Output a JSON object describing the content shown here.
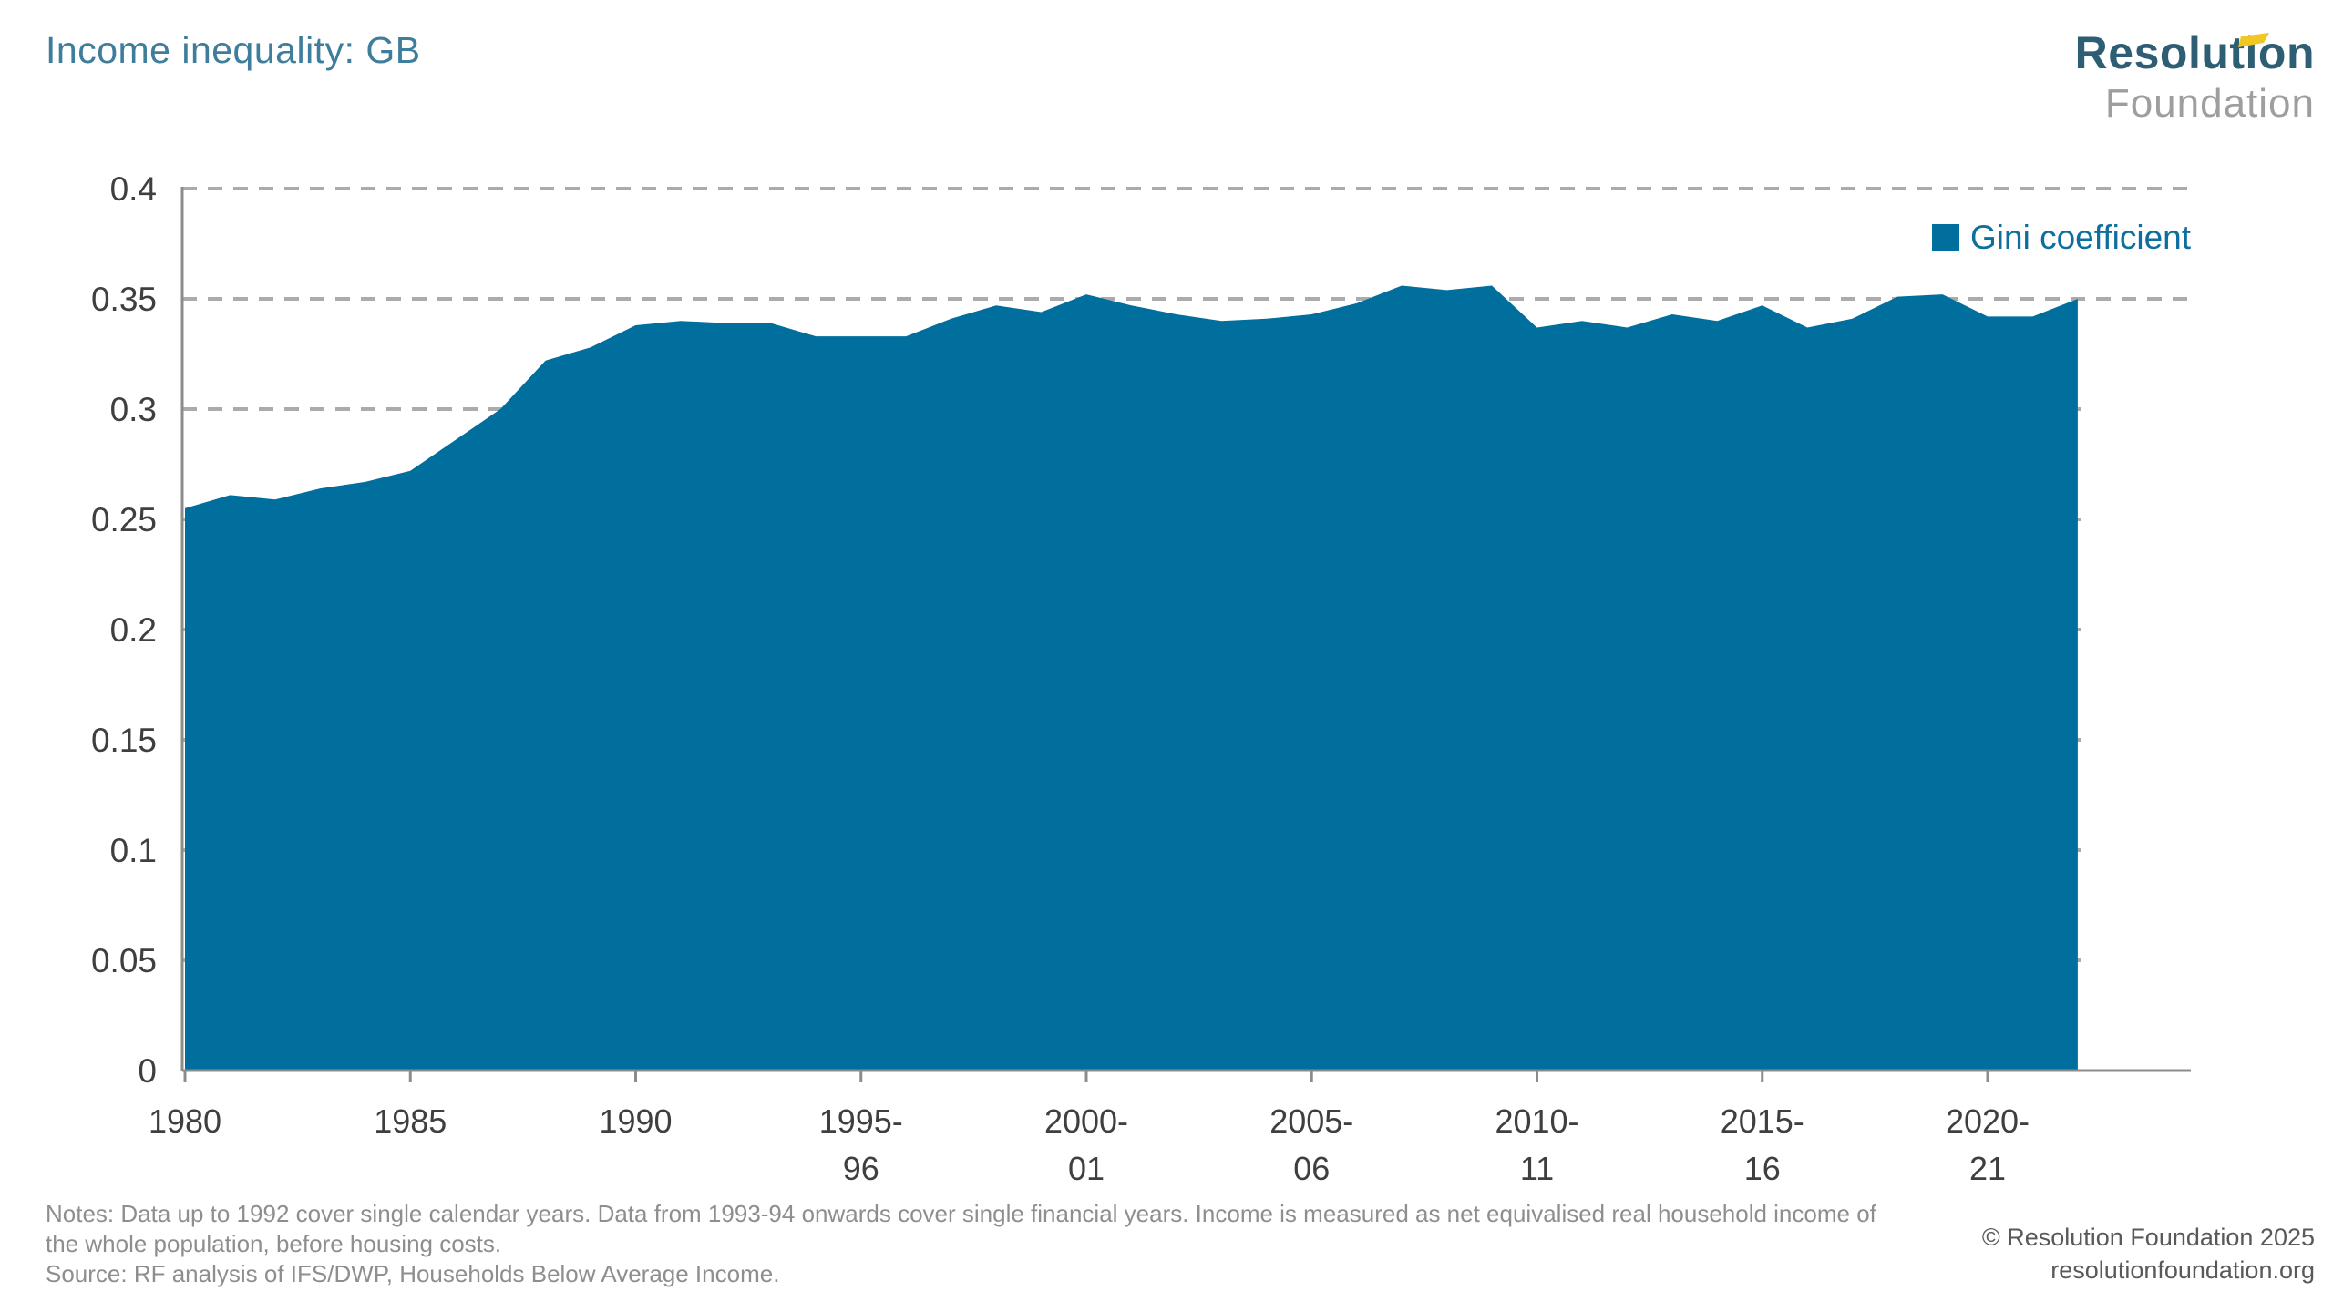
{
  "page": {
    "title": "Income inequality: GB"
  },
  "brand": {
    "name": "Resolution",
    "name2": "Foundation"
  },
  "legend": {
    "label": "Gini coefficient"
  },
  "footer": {
    "notes_line1": "Notes: Data up to 1992 cover single calendar years. Data from 1993-94 onwards cover single financial years. Income is measured as net equivalised real household income of",
    "notes_line2": "the whole population, before housing costs.",
    "source": "Source: RF analysis of IFS/DWP, Households Below Average Income.",
    "copyright": "© Resolution Foundation 2025",
    "website": "resolutionfoundation.org"
  },
  "colors": {
    "series": "#006F9E",
    "title": "#3E7D9B",
    "brand_teal": "#2D5E74",
    "brand_gray": "#9E9E9D",
    "brand_yellow": "#F2C623",
    "grid": "#ABABAB",
    "axis": "#8C8C8C",
    "tick_label": "#3F3F3F",
    "legend_text": "#0E6F9D",
    "notes": "#8E8E8E",
    "footer_right": "#595959"
  },
  "chart_data": {
    "type": "area",
    "title": "Income inequality: GB",
    "series_name": "Gini coefficient",
    "categories": [
      "1980",
      "1981",
      "1982",
      "1983",
      "1984",
      "1985",
      "1986",
      "1987",
      "1988",
      "1989",
      "1990",
      "1991",
      "1992",
      "1993-94",
      "1994-95",
      "1995-96",
      "1996-97",
      "1997-98",
      "1998-99",
      "1999-00",
      "2000-01",
      "2001-02",
      "2002-03",
      "2003-04",
      "2004-05",
      "2005-06",
      "2006-07",
      "2007-08",
      "2008-09",
      "2009-10",
      "2010-11",
      "2011-12",
      "2012-13",
      "2013-14",
      "2014-15",
      "2015-16",
      "2016-17",
      "2017-18",
      "2018-19",
      "2019-20",
      "2020-21",
      "2021-22",
      "2022-23"
    ],
    "values": [
      0.255,
      0.261,
      0.259,
      0.264,
      0.267,
      0.272,
      0.286,
      0.3,
      0.322,
      0.328,
      0.338,
      0.34,
      0.339,
      0.339,
      0.333,
      0.333,
      0.333,
      0.341,
      0.347,
      0.344,
      0.352,
      0.347,
      0.343,
      0.34,
      0.341,
      0.343,
      0.348,
      0.356,
      0.354,
      0.356,
      0.337,
      0.34,
      0.337,
      0.343,
      0.34,
      0.347,
      0.337,
      0.341,
      0.351,
      0.352,
      0.342,
      0.342,
      0.35
    ],
    "xlabel": "",
    "ylabel": "",
    "ylim": [
      0,
      0.4
    ],
    "y_ticks": [
      0,
      0.05,
      0.1,
      0.15,
      0.2,
      0.25,
      0.3,
      0.35,
      0.4
    ],
    "y_tick_labels": [
      "0",
      "0.05",
      "0.1",
      "0.15",
      "0.2",
      "0.25",
      "0.3",
      "0.35",
      "0.4"
    ],
    "x_tick_positions": [
      0,
      5,
      10,
      15,
      20,
      25,
      30,
      35,
      40
    ],
    "x_tick_labels": [
      [
        "1980"
      ],
      [
        "1985"
      ],
      [
        "1990"
      ],
      [
        "1995-",
        "96"
      ],
      [
        "2000-",
        "01"
      ],
      [
        "2005-",
        "06"
      ],
      [
        "2010-",
        "11"
      ],
      [
        "2015-",
        "16"
      ],
      [
        "2020-",
        "21"
      ]
    ],
    "grid": "dashed-horizontal",
    "legend_position": "top-right"
  }
}
